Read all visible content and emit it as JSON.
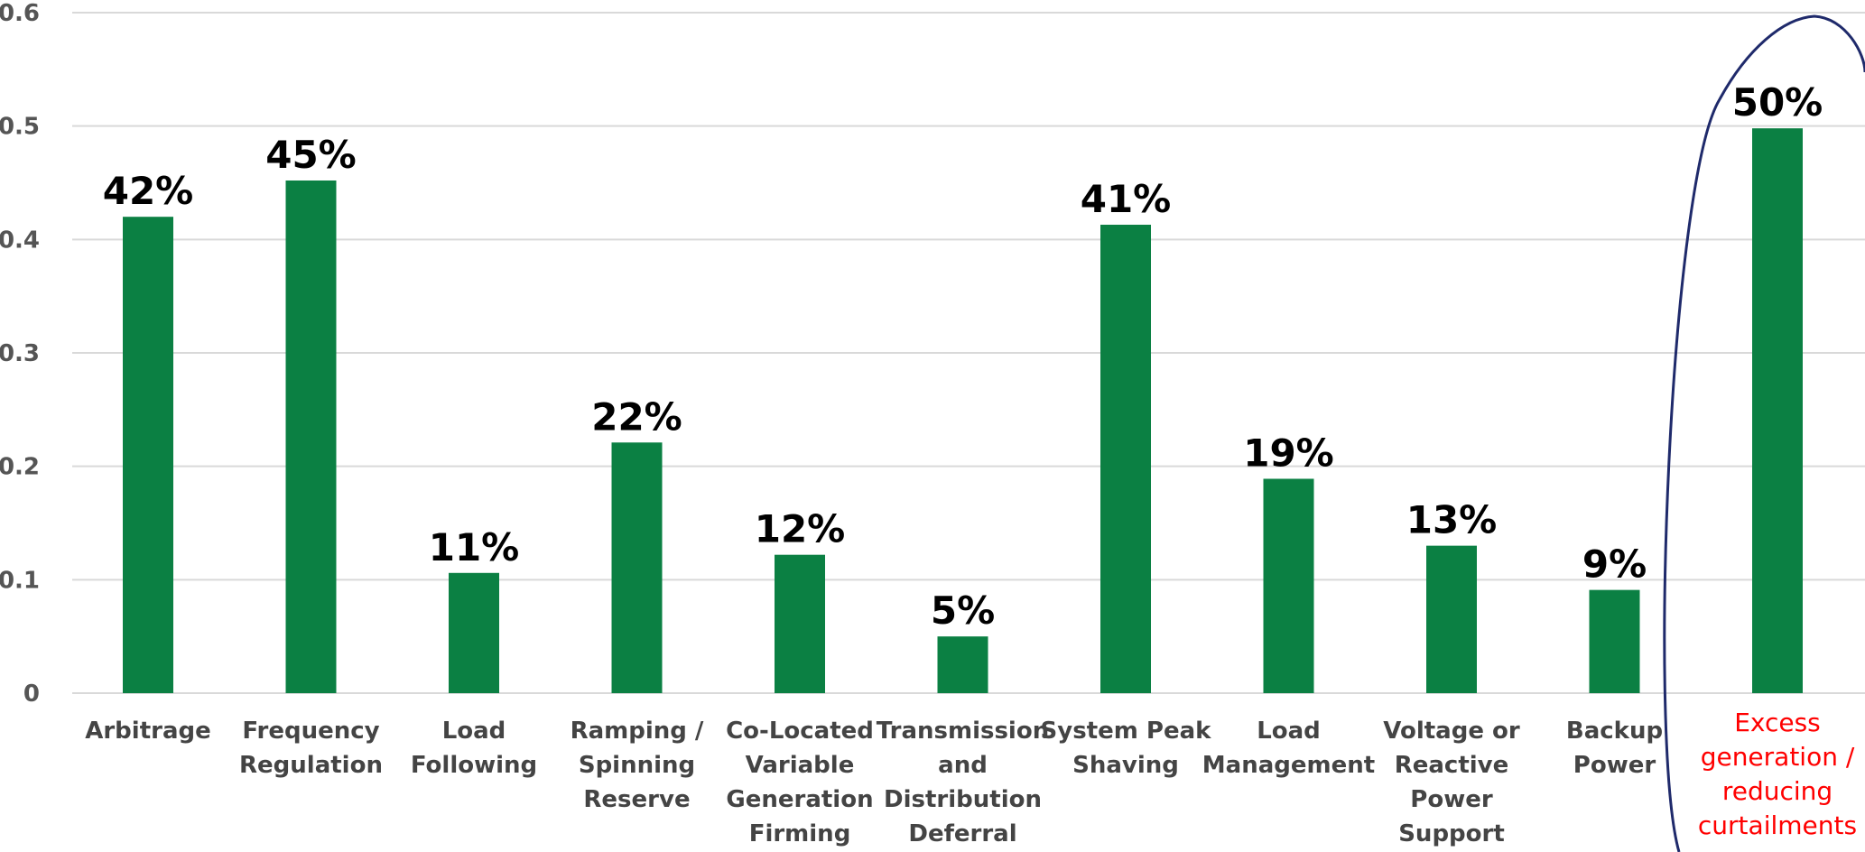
{
  "chart_data": {
    "type": "bar",
    "title": "",
    "xlabel": "",
    "ylabel": "",
    "ylim": [
      0,
      0.6
    ],
    "yticks": [
      "0",
      "0.1",
      "0.2",
      "0.3",
      "0.4",
      "0.5",
      "0.6"
    ],
    "grid": true,
    "bar_color": "#0b8043",
    "highlight_color": "#ff0000",
    "highlight_outline_color": "#1f2a6b",
    "categories": [
      "Arbitrage",
      "Frequency Regulation",
      "Load Following",
      "Ramping / Spinning Reserve",
      "Co-Located Variable Generation Firming",
      "Transmission and Distribution Deferral",
      "System Peak Shaving",
      "Load Management",
      "Voltage or Reactive Power Support",
      "Backup Power",
      "Excess generation / reducing curtailments"
    ],
    "category_lines": [
      [
        "Arbitrage"
      ],
      [
        "Frequency",
        "Regulation"
      ],
      [
        "Load",
        "Following"
      ],
      [
        "Ramping /",
        "Spinning",
        "Reserve"
      ],
      [
        "Co-Located",
        "Variable",
        "Generation",
        "Firming"
      ],
      [
        "Transmission",
        "and",
        "Distribution",
        "Deferral"
      ],
      [
        "System Peak",
        "Shaving"
      ],
      [
        "Load",
        "Management"
      ],
      [
        "Voltage or",
        "Reactive",
        "Power",
        "Support"
      ],
      [
        "Backup",
        "Power"
      ],
      [
        "Excess",
        "generation /",
        "reducing",
        "curtailments"
      ]
    ],
    "values": [
      0.42,
      0.452,
      0.106,
      0.221,
      0.122,
      0.05,
      0.413,
      0.189,
      0.13,
      0.091,
      0.498
    ],
    "data_labels": [
      "42%",
      "45%",
      "11%",
      "22%",
      "12%",
      "5%",
      "41%",
      "19%",
      "13%",
      "9%",
      "50%"
    ],
    "highlighted_index": 10
  }
}
